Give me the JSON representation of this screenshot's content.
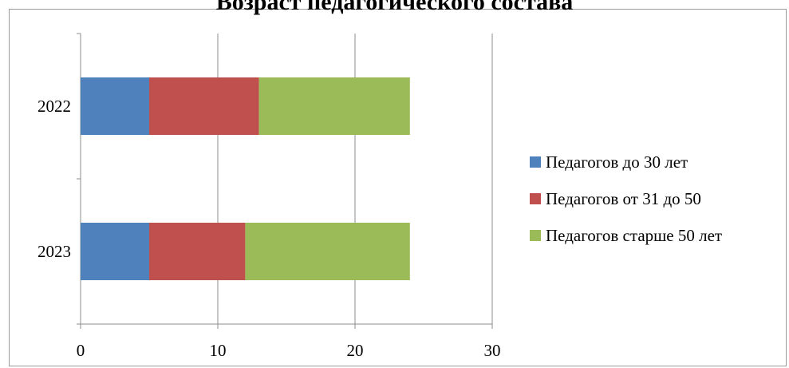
{
  "chart_data": {
    "type": "bar",
    "orientation": "horizontal",
    "stacked": true,
    "title": "Возраст педагогического состава",
    "categories": [
      "2022",
      "2023"
    ],
    "series": [
      {
        "name": "Педагогов до 30 лет",
        "values": [
          5,
          5
        ],
        "color": "#4f81bd"
      },
      {
        "name": "Педагогов от 31 до 50",
        "values": [
          8,
          7
        ],
        "color": "#c0504d"
      },
      {
        "name": "Педагогов старше 50 лет",
        "values": [
          11,
          12
        ],
        "color": "#9bbb59"
      }
    ],
    "xlim": [
      0,
      30
    ],
    "xticks": [
      "0",
      "10",
      "20",
      "30"
    ],
    "grid": true,
    "legend_position": "right"
  }
}
